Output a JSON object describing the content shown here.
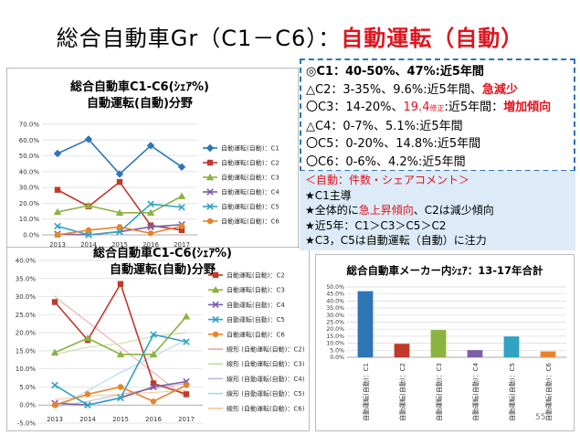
{
  "title": {
    "main": "総合自動車Gr（C1－C6）：",
    "sub": "自動運転（自動）"
  },
  "summary": {
    "lines": [
      {
        "mark": "◎",
        "code": "C1",
        "text": "：40-50%、47%:近5年間",
        "bold": true
      },
      {
        "mark": "△",
        "code": "C2",
        "text": "：3-35%、9.6%:近5年間、",
        "emph": "急減少"
      },
      {
        "mark": "〇",
        "code": "C3",
        "text": "：14-20%、",
        "red": "19.4",
        "small": "修正",
        "text2": ":近5年間：",
        "emph": "増加傾向"
      },
      {
        "mark": "△",
        "code": "C4",
        "text": "：0-7%、5.1%:近5年間"
      },
      {
        "mark": "〇",
        "code": "C5",
        "text": "：0-20%、14.8%:近5年間"
      },
      {
        "mark": "〇",
        "code": "C6",
        "text": "：0-6%、4.2%:近5年間"
      }
    ]
  },
  "notes": {
    "header": "＜自動：件数・シェアコメント＞",
    "items": [
      {
        "star": "★",
        "pre": "C1主導"
      },
      {
        "star": "★",
        "pre": "全体的に",
        "red": "急上昇傾向",
        "post": "、C2は減少傾向"
      },
      {
        "star": "★",
        "pre": "近5年：C1＞C3＞C5＞C2"
      },
      {
        "star": "★",
        "pre": "C3，C5は自動運転（自動）に注力"
      }
    ]
  },
  "page_number": "55",
  "chart_data": [
    {
      "type": "line",
      "title": "総合自動車C1-C6(ｼｪｱ%)",
      "subtitle": "自動運転(自動)分野",
      "x": [
        "2013",
        "2014",
        "2015",
        "2016",
        "2017"
      ],
      "ylim": [
        0,
        70
      ],
      "yticks": [
        "0.0%",
        "10.0%",
        "20.0%",
        "30.0%",
        "40.0%",
        "50.0%",
        "60.0%",
        "70.0%"
      ],
      "series": [
        {
          "name": "自動運転(自動)：C1",
          "color": "#2e75b6",
          "marker": "diamond",
          "values": [
            51.5,
            60.5,
            38.5,
            56.5,
            43.0
          ]
        },
        {
          "name": "自動運転(自動)：C2",
          "color": "#c0392b",
          "marker": "square",
          "values": [
            28.5,
            18.0,
            33.5,
            6.0,
            3.0
          ]
        },
        {
          "name": "自動運転(自動)：C3",
          "color": "#8bb33f",
          "marker": "triangle",
          "values": [
            14.5,
            18.5,
            14.0,
            14.0,
            24.5
          ]
        },
        {
          "name": "自動運転(自動)：C4",
          "color": "#7b5ea7",
          "marker": "x",
          "values": [
            0.5,
            0.0,
            2.0,
            5.0,
            6.5
          ]
        },
        {
          "name": "自動運転(自動)：C5",
          "color": "#2fa3c2",
          "marker": "x",
          "values": [
            5.5,
            0.0,
            2.0,
            19.5,
            17.5
          ]
        },
        {
          "name": "自動運転(自動)：C6",
          "color": "#e8832a",
          "marker": "circle",
          "values": [
            0.0,
            3.0,
            5.0,
            1.0,
            5.5
          ]
        }
      ],
      "legend": "right",
      "grid": true
    },
    {
      "type": "line",
      "title": "総合自動車C1-C6(ｼｪｱ%)",
      "subtitle": "自動運転(自動)分野",
      "x": [
        "2013",
        "2014",
        "2015",
        "2016",
        "2017"
      ],
      "ylim": [
        -5,
        40
      ],
      "yticks": [
        "-5.0%",
        "0.0%",
        "5.0%",
        "10.0%",
        "15.0%",
        "20.0%",
        "25.0%",
        "30.0%",
        "35.0%",
        "40.0%"
      ],
      "series": [
        {
          "name": "自動運転(自動)：C2",
          "color": "#c0392b",
          "marker": "square",
          "values": [
            28.5,
            18.0,
            33.5,
            6.0,
            3.0
          ]
        },
        {
          "name": "自動運転(自動)：C3",
          "color": "#8bb33f",
          "marker": "triangle",
          "values": [
            14.5,
            18.5,
            14.0,
            14.0,
            24.5
          ]
        },
        {
          "name": "自動運転(自動)：C4",
          "color": "#7b5ea7",
          "marker": "x",
          "values": [
            0.5,
            0.0,
            2.0,
            5.0,
            6.5
          ]
        },
        {
          "name": "自動運転(自動)：C5",
          "color": "#2fa3c2",
          "marker": "x",
          "values": [
            5.5,
            0.0,
            2.0,
            19.5,
            17.5
          ]
        },
        {
          "name": "自動運転(自動)：C6",
          "color": "#e8832a",
          "marker": "circle",
          "values": [
            0.0,
            3.0,
            5.0,
            1.0,
            5.5
          ]
        }
      ],
      "trendlines": [
        {
          "name": "線形 (自動運転(自動)：C2)",
          "color": "#e8a7a0",
          "values": [
            30.0,
            23.0,
            16.0,
            9.0,
            2.0
          ]
        },
        {
          "name": "線形 (自動運転(自動)：C3)",
          "color": "#c5dca0",
          "values": [
            14.0,
            16.0,
            17.0,
            19.0,
            20.0
          ]
        },
        {
          "name": "線形 (自動運転(自動)：C4)",
          "color": "#c2b5d8",
          "values": [
            -0.5,
            1.0,
            3.0,
            4.5,
            6.0
          ]
        },
        {
          "name": "線形 (自動運転(自動)：C5)",
          "color": "#a6d7e6",
          "values": [
            -1.0,
            4.0,
            9.0,
            13.5,
            18.0
          ]
        },
        {
          "name": "線形 (自動運転(自動)：C6)",
          "color": "#f3c59c",
          "values": [
            1.5,
            2.5,
            3.0,
            3.5,
            4.0
          ]
        }
      ],
      "legend": "right",
      "grid": true
    },
    {
      "type": "bar",
      "title": "総合自動車メーカー内ｼｪｱ：13-17年合計",
      "categories": [
        "自動運転(自動)：C1",
        "自動運転(自動)：C2",
        "自動運転(自動)：C3",
        "自動運転(自動)：C4",
        "自動運転(自動)：C5",
        "自動運転(自動)：C6"
      ],
      "values": [
        47.0,
        9.6,
        19.4,
        5.1,
        14.8,
        4.2
      ],
      "colors": [
        "#2e75b6",
        "#c0392b",
        "#8bb33f",
        "#7b5ea7",
        "#2fa3c2",
        "#e8832a"
      ],
      "ylim": [
        0,
        50
      ],
      "yticks": [
        "0.0%",
        "5.0%",
        "10.0%",
        "15.0%",
        "20.0%",
        "25.0%",
        "30.0%",
        "35.0%",
        "40.0%",
        "45.0%",
        "50.0%"
      ],
      "grid": true
    }
  ]
}
